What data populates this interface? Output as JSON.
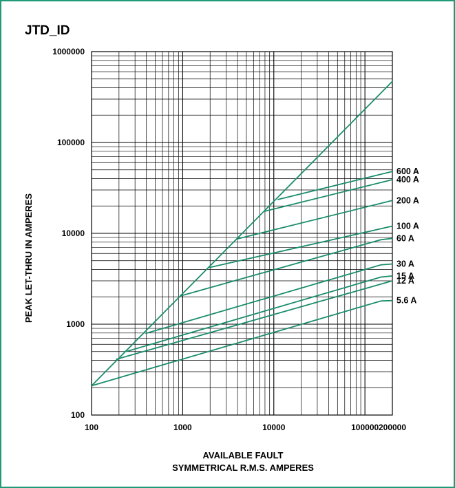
{
  "chart_data": {
    "type": "line",
    "title": "JTD_ID",
    "xlabel_lines": [
      "AVAILABLE FAULT",
      "SYMMETRICAL R.M.S. AMPERES"
    ],
    "ylabel": "PEAK LET-THRU IN AMPERES",
    "x_scale": "log",
    "y_scale": "log",
    "xlim": [
      100,
      200000
    ],
    "ylim": [
      100,
      1000000
    ],
    "x_ticks": [
      100,
      1000,
      10000,
      100000,
      200000
    ],
    "x_tick_labels": [
      "100",
      "1000",
      "10000",
      "100000",
      "200000"
    ],
    "y_ticks": [
      100,
      1000,
      10000,
      100000,
      1000000
    ],
    "y_tick_labels": [
      "100",
      "1000",
      "10000",
      "100000",
      "1000000"
    ],
    "grid": true,
    "line_color": "#1a8c6c",
    "reference_line": {
      "x": [
        100,
        200000
      ],
      "y": [
        210,
        470000
      ]
    },
    "series": [
      {
        "name": "600 A",
        "x": [
          11000,
          200000
        ],
        "y": [
          23500,
          48000
        ]
      },
      {
        "name": "400 A",
        "x": [
          8000,
          200000
        ],
        "y": [
          17500,
          39000
        ]
      },
      {
        "name": "200 A",
        "x": [
          4000,
          200000
        ],
        "y": [
          8700,
          23000
        ]
      },
      {
        "name": "100 A",
        "x": [
          1950,
          200000
        ],
        "y": [
          4200,
          12000
        ]
      },
      {
        "name": "60 A",
        "x": [
          950,
          150000,
          200000
        ],
        "y": [
          2050,
          8500,
          8800
        ]
      },
      {
        "name": "30 A",
        "x": [
          390,
          150000,
          200000
        ],
        "y": [
          790,
          4500,
          4600
        ]
      },
      {
        "name": "15 A",
        "x": [
          240,
          150000,
          200000
        ],
        "y": [
          500,
          3300,
          3400
        ]
      },
      {
        "name": "12 A",
        "x": [
          185,
          200000
        ],
        "y": [
          410,
          3000
        ]
      },
      {
        "name": "5.6 A",
        "x": [
          100,
          150000,
          200000
        ],
        "y": [
          210,
          1800,
          1820
        ]
      }
    ]
  }
}
